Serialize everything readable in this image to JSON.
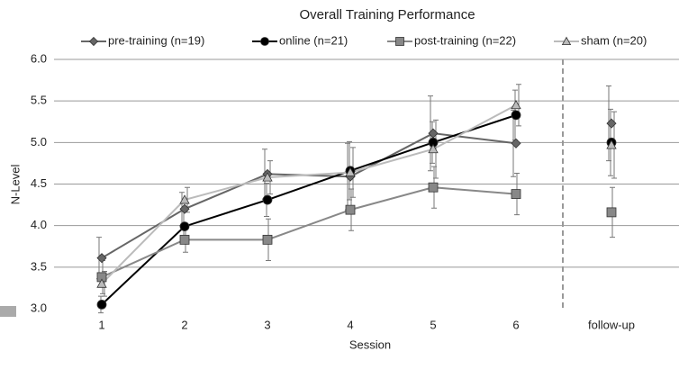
{
  "chart_data": {
    "type": "line",
    "title": "Overall Training Performance",
    "xlabel": "Session",
    "ylabel": "N-Level",
    "categories": [
      "1",
      "2",
      "3",
      "4",
      "5",
      "6",
      "follow-up"
    ],
    "connect_last": false,
    "ylim": [
      3.0,
      6.0
    ],
    "yticks": [
      {
        "value": 3.0,
        "label": "3.0"
      },
      {
        "value": 3.5,
        "label": "3.5"
      },
      {
        "value": 4.0,
        "label": "4.0"
      },
      {
        "value": 4.5,
        "label": "4.5"
      },
      {
        "value": 5.0,
        "label": "5.0"
      },
      {
        "value": 5.5,
        "label": "5.5"
      },
      {
        "value": 6.0,
        "label": "6.0"
      }
    ],
    "grid": true,
    "series": [
      {
        "name": "pre-training (n=19)",
        "color": "#666666",
        "marker": "diamond",
        "values": [
          3.61,
          4.2,
          4.62,
          4.59,
          5.11,
          4.99,
          5.23
        ],
        "errors": [
          0.25,
          0.2,
          0.3,
          0.4,
          0.45,
          0.4,
          0.45
        ]
      },
      {
        "name": "online (n=21)",
        "color": "#000000",
        "marker": "circle",
        "values": [
          3.05,
          3.99,
          4.31,
          4.66,
          5.0,
          5.33,
          5.0
        ],
        "errors": [
          0.1,
          0.2,
          0.2,
          0.35,
          0.25,
          0.3,
          0.4
        ]
      },
      {
        "name": "post-training (n=22)",
        "color": "#888888",
        "marker": "square",
        "values": [
          3.38,
          3.83,
          3.83,
          4.19,
          4.46,
          4.38,
          4.16
        ],
        "errors": [
          0.2,
          0.15,
          0.25,
          0.25,
          0.25,
          0.25,
          0.3
        ]
      },
      {
        "name": "sham (n=20)",
        "color": "#bbbbbb",
        "marker": "triangle",
        "values": [
          3.3,
          4.31,
          4.58,
          4.64,
          4.92,
          5.45,
          4.97
        ],
        "errors": [
          0.15,
          0.15,
          0.2,
          0.3,
          0.35,
          0.25,
          0.4
        ]
      }
    ]
  }
}
